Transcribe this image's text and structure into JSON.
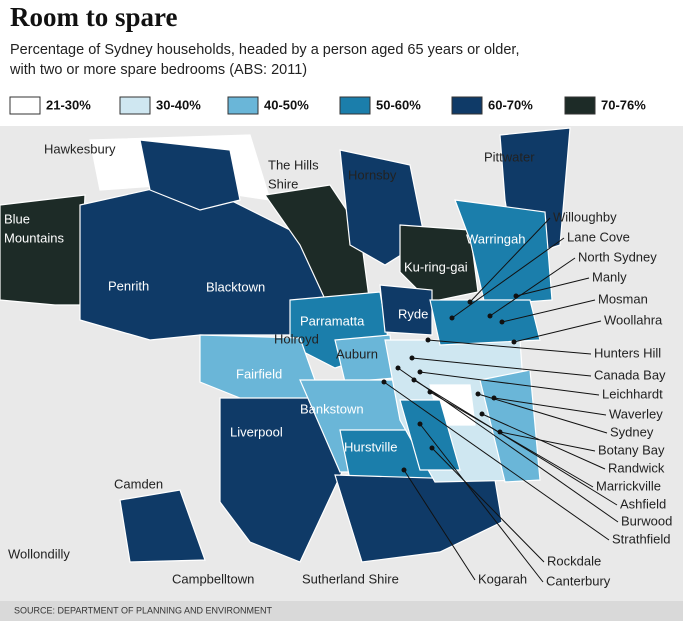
{
  "header": {
    "title": "Room to spare",
    "subtitle": [
      "Percentage of Sydney households, headed by a person aged 65 years or older,",
      "with two or more spare bedrooms (ABS: 2011)"
    ]
  },
  "legend": {
    "items": [
      {
        "label": "21-30%",
        "color": "#ffffff"
      },
      {
        "label": "30-40%",
        "color": "#cfe7f1"
      },
      {
        "label": "40-50%",
        "color": "#6ab6d8"
      },
      {
        "label": "50-60%",
        "color": "#1b7eab"
      },
      {
        "label": "60-70%",
        "color": "#0f3a67"
      },
      {
        "label": "70-76%",
        "color": "#1d2b27"
      }
    ]
  },
  "map": {
    "labels": [
      [
        "Hawkesbury"
      ],
      [
        "The Hills",
        "Shire"
      ],
      [
        "Hornsby"
      ],
      [
        "Pittwater"
      ],
      [
        "Blue",
        "Mountains"
      ],
      [
        "Penrith"
      ],
      [
        "Blacktown"
      ],
      [
        "Warringah"
      ],
      [
        "Ku-ring-gai"
      ],
      [
        "Ryde"
      ],
      [
        "Parramatta"
      ],
      [
        "Holroyd"
      ],
      [
        "Auburn"
      ],
      [
        "Fairfield"
      ],
      [
        "Bankstown"
      ],
      [
        "Liverpool"
      ],
      [
        "Hurstville"
      ],
      [
        "Camden"
      ],
      [
        "Wollondilly"
      ],
      [
        "Campbelltown"
      ],
      [
        "Sutherland Shire"
      ],
      [
        "Willoughby"
      ],
      [
        "Lane Cove"
      ],
      [
        "North Sydney"
      ],
      [
        "Manly"
      ],
      [
        "Mosman"
      ],
      [
        "Woollahra"
      ],
      [
        "Hunters Hill"
      ],
      [
        "Canada Bay"
      ],
      [
        "Leichhardt"
      ],
      [
        "Waverley"
      ],
      [
        "Sydney"
      ],
      [
        "Botany Bay"
      ],
      [
        "Randwick"
      ],
      [
        "Marrickville"
      ],
      [
        "Ashfield"
      ],
      [
        "Burwood"
      ],
      [
        "Strathfield"
      ],
      [
        "Rockdale"
      ],
      [
        "Canterbury"
      ],
      [
        "Kogarah"
      ]
    ]
  },
  "footer": {
    "source": "SOURCE: DEPARTMENT OF PLANNING AND ENVIRONMENT"
  }
}
